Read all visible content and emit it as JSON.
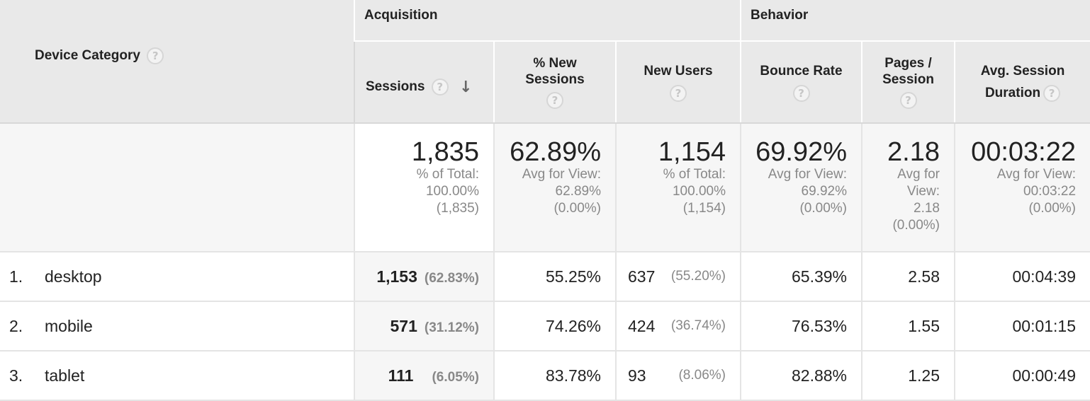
{
  "headers": {
    "device_category": "Device Category",
    "acquisition": "Acquisition",
    "behavior": "Behavior",
    "columns": {
      "sessions": "Sessions",
      "pct_new_sessions_line1": "% New",
      "pct_new_sessions_line2": "Sessions",
      "new_users": "New Users",
      "bounce_rate": "Bounce Rate",
      "pages_session_line1": "Pages /",
      "pages_session_line2": "Session",
      "avg_session_line1": "Avg. Session",
      "avg_session_line2": "Duration"
    },
    "help_glyph": "?"
  },
  "totals": {
    "sessions": {
      "value": "1,835",
      "sub1": "% of Total:",
      "sub2": "100.00%",
      "sub3": "(1,835)"
    },
    "pct_new_sessions": {
      "value": "62.89%",
      "sub1": "Avg for View:",
      "sub2": "62.89%",
      "sub3": "(0.00%)"
    },
    "new_users": {
      "value": "1,154",
      "sub1": "% of Total:",
      "sub2": "100.00%",
      "sub3": "(1,154)"
    },
    "bounce_rate": {
      "value": "69.92%",
      "sub1": "Avg for View:",
      "sub2": "69.92%",
      "sub3": "(0.00%)"
    },
    "pages_session": {
      "value": "2.18",
      "sub1": "Avg for",
      "sub2": "View:",
      "sub3": "2.18",
      "sub4": "(0.00%)"
    },
    "avg_session_duration": {
      "value": "00:03:22",
      "sub1": "Avg for View:",
      "sub2": "00:03:22",
      "sub3": "(0.00%)"
    }
  },
  "rows": [
    {
      "num": "1.",
      "name": "desktop",
      "sessions": "1,153",
      "sessions_pct": "(62.83%)",
      "pct_new": "55.25%",
      "new_users": "637",
      "new_users_pct": "(55.20%)",
      "bounce": "65.39%",
      "pages": "2.58",
      "duration": "00:04:39"
    },
    {
      "num": "2.",
      "name": "mobile",
      "sessions": "571",
      "sessions_pct": "(31.12%)",
      "pct_new": "74.26%",
      "new_users": "424",
      "new_users_pct": "(36.74%)",
      "bounce": "76.53%",
      "pages": "1.55",
      "duration": "00:01:15"
    },
    {
      "num": "3.",
      "name": "tablet",
      "sessions": "111",
      "sessions_pct": "(6.05%)",
      "pct_new": "83.78%",
      "new_users": "93",
      "new_users_pct": "(8.06%)",
      "bounce": "82.88%",
      "pages": "1.25",
      "duration": "00:00:49"
    }
  ],
  "icons": {
    "help": "question-mark-circle",
    "sort": "arrow-down"
  }
}
